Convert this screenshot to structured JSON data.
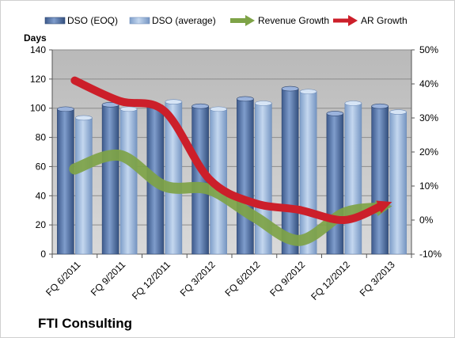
{
  "chart_data": {
    "type": "bar",
    "title": "FTI Consulting",
    "ylabel": "Days",
    "categories": [
      "FQ 6/2011",
      "FQ 9/2011",
      "FQ 12/2011",
      "FQ 3/2012",
      "FQ 6/2012",
      "FQ 9/2012",
      "FQ 12/2012",
      "FQ 3/2013"
    ],
    "ylim": [
      0,
      140
    ],
    "yticks": [
      0,
      20,
      40,
      60,
      80,
      100,
      120,
      140
    ],
    "y2lim": [
      -10,
      50
    ],
    "y2ticks": [
      "-10%",
      "0%",
      "10%",
      "20%",
      "30%",
      "40%",
      "50%"
    ],
    "y2tick_values": [
      -10,
      0,
      10,
      20,
      30,
      40,
      50
    ],
    "series": [
      {
        "name": "DSO (EOQ)",
        "kind": "bar",
        "axis": "left",
        "color": "#4f6fa3",
        "values": [
          101,
          104,
          103,
          103,
          108,
          115,
          98,
          103
        ]
      },
      {
        "name": "DSO (average)",
        "kind": "bar",
        "axis": "left",
        "color": "#9db8dc",
        "values": [
          95,
          101,
          106,
          101,
          105,
          113,
          105,
          99
        ]
      },
      {
        "name": "Revenue Growth",
        "kind": "line",
        "axis": "right",
        "color": "#7ea347",
        "values": [
          15,
          19,
          10,
          9,
          1,
          -6,
          2,
          4
        ]
      },
      {
        "name": "AR Growth",
        "kind": "line",
        "axis": "right",
        "color": "#cc1f2a",
        "values": [
          41,
          35,
          32,
          12,
          5,
          3,
          0,
          5
        ]
      }
    ],
    "legend_position": "top",
    "grid": true
  }
}
